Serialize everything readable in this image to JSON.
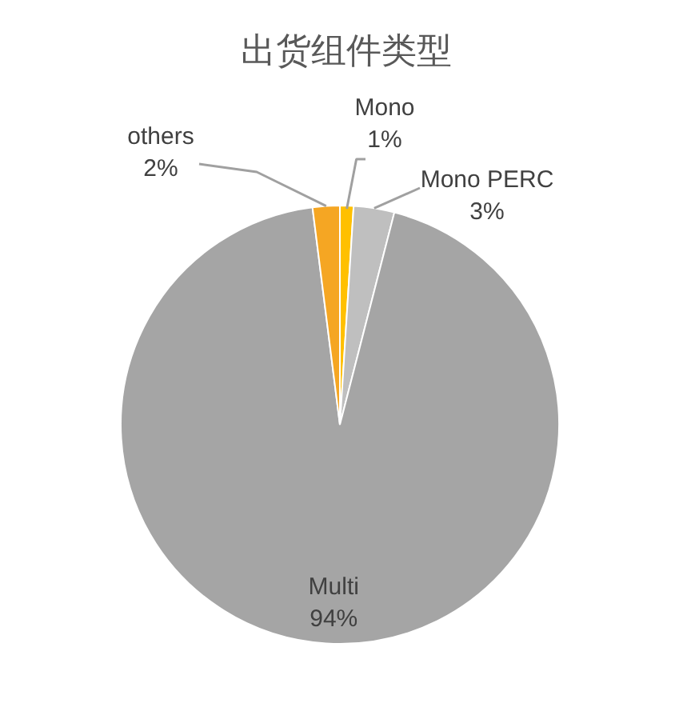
{
  "chart_data": {
    "type": "pie",
    "title": "出货组件类型",
    "categories": [
      "Mono",
      "Mono PERC",
      "Multi",
      "others"
    ],
    "values": [
      1,
      3,
      94,
      2
    ],
    "colors": [
      "#ffc000",
      "#bfbfbf",
      "#a5a5a5",
      "#f5a623"
    ],
    "value_labels": [
      "1%",
      "3%",
      "94%",
      "2%"
    ]
  }
}
